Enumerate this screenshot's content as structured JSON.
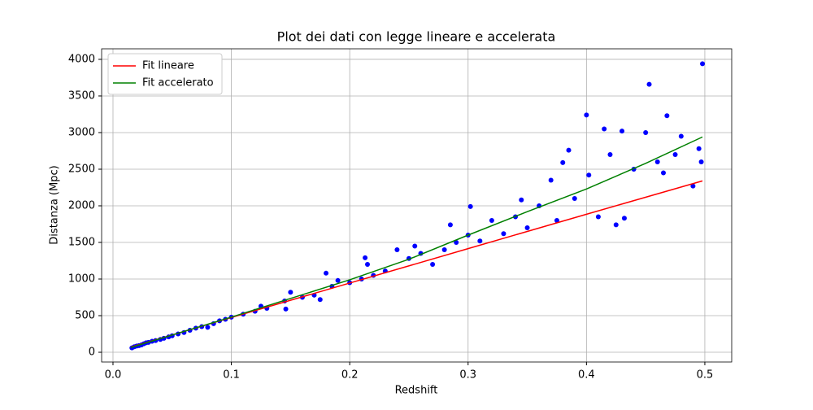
{
  "chart_data": {
    "type": "scatter",
    "title": "Plot dei dati con legge lineare e accelerata",
    "x_label": "Redshift",
    "y_label": "Distanza (Mpc)",
    "xlim": [
      -0.0096,
      0.5227
    ],
    "ylim": [
      -133,
      4144
    ],
    "xticks": [
      {
        "value": 0,
        "label": "0.0"
      },
      0.1,
      0.2,
      0.3,
      0.4,
      0.5
    ],
    "yticks": [
      0,
      500,
      1000,
      1500,
      2000,
      2500,
      3000,
      3500,
      4000
    ],
    "grid": true,
    "legend": "upper left",
    "series": [
      {
        "type": "scatter",
        "color": "#0000ff",
        "x": [
          0.016,
          0.018,
          0.02,
          0.022,
          0.024,
          0.026,
          0.028,
          0.03,
          0.033,
          0.036,
          0.04,
          0.043,
          0.047,
          0.05,
          0.055,
          0.06,
          0.065,
          0.07,
          0.075,
          0.08,
          0.085,
          0.09,
          0.095,
          0.1,
          0.11,
          0.12,
          0.125,
          0.13,
          0.145,
          0.15,
          0.146,
          0.16,
          0.17,
          0.175,
          0.18,
          0.185,
          0.19,
          0.2,
          0.21,
          0.213,
          0.215,
          0.22,
          0.23,
          0.24,
          0.25,
          0.255,
          0.26,
          0.27,
          0.28,
          0.285,
          0.29,
          0.3,
          0.302,
          0.31,
          0.32,
          0.33,
          0.34,
          0.345,
          0.35,
          0.36,
          0.37,
          0.375,
          0.38,
          0.385,
          0.39,
          0.4,
          0.402,
          0.41,
          0.415,
          0.42,
          0.425,
          0.43,
          0.432,
          0.44,
          0.45,
          0.453,
          0.46,
          0.465,
          0.468,
          0.475,
          0.48,
          0.49,
          0.495,
          0.498,
          0.497
        ],
        "values": [
          60,
          75,
          85,
          90,
          100,
          115,
          130,
          135,
          150,
          160,
          175,
          190,
          210,
          225,
          250,
          270,
          300,
          330,
          350,
          340,
          390,
          430,
          450,
          480,
          520,
          560,
          630,
          600,
          700,
          820,
          590,
          750,
          780,
          720,
          1080,
          900,
          980,
          950,
          1000,
          1290,
          1200,
          1050,
          1110,
          1400,
          1280,
          1450,
          1350,
          1200,
          1400,
          1740,
          1500,
          1600,
          1990,
          1520,
          1800,
          1620,
          1850,
          2080,
          1700,
          2000,
          2350,
          1800,
          2590,
          2760,
          2100,
          3240,
          2420,
          1850,
          3050,
          2700,
          1740,
          3020,
          1830,
          2500,
          3000,
          3660,
          2600,
          2450,
          3230,
          2700,
          2950,
          2270,
          2780,
          3940,
          2600
        ]
      },
      {
        "type": "line",
        "name": "Fit lineare",
        "color": "#ff0000",
        "x": [
          0.015,
          0.1,
          0.2,
          0.3,
          0.4,
          0.498
        ],
        "values": [
          70,
          475,
          945,
          1415,
          1885,
          2340
        ]
      },
      {
        "type": "line",
        "name": "Fit accelerato",
        "color": "#008000",
        "x": [
          0.015,
          0.1,
          0.2,
          0.25,
          0.3,
          0.35,
          0.4,
          0.45,
          0.498
        ],
        "values": [
          65,
          480,
          990,
          1270,
          1600,
          1920,
          2230,
          2580,
          2940
        ]
      }
    ]
  }
}
